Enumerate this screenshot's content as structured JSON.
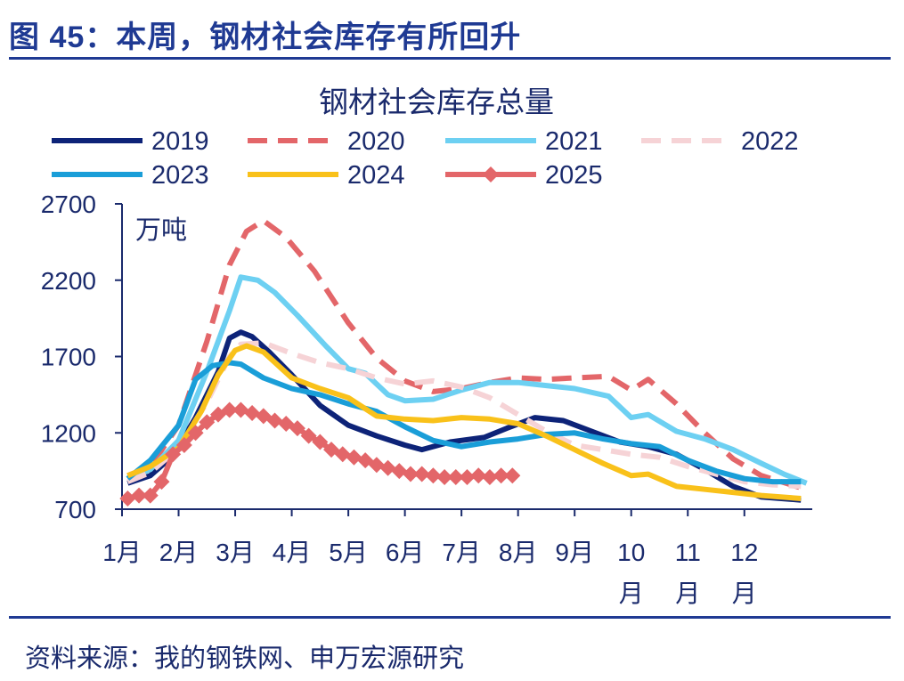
{
  "figure_title": "图 45：本周，钢材社会库存有所回升",
  "source": "资料来源：我的钢铁网、申万宏源研究",
  "chart_data": {
    "type": "line",
    "title": "钢材社会库存总量",
    "unit_label": "万吨",
    "ylim": [
      700,
      2700
    ],
    "yticks": [
      "2700",
      "2200",
      "1700",
      "1200",
      "700"
    ],
    "ytick_values": [
      2700,
      2200,
      1700,
      1200,
      700
    ],
    "xlim": [
      1,
      13.2
    ],
    "xticks": [
      {
        "label": "1月",
        "pos": 1
      },
      {
        "label": "2月",
        "pos": 2
      },
      {
        "label": "3月",
        "pos": 3
      },
      {
        "label": "4月",
        "pos": 4
      },
      {
        "label": "5月",
        "pos": 5
      },
      {
        "label": "6月",
        "pos": 6
      },
      {
        "label": "7月",
        "pos": 7
      },
      {
        "label": "8月",
        "pos": 8
      },
      {
        "label": "9月",
        "pos": 9
      },
      {
        "label": "10\n月",
        "pos": 10
      },
      {
        "label": "11\n月",
        "pos": 11
      },
      {
        "label": "12\n月",
        "pos": 12
      }
    ],
    "legend_position": "top",
    "series": [
      {
        "name": "2019",
        "color": "#0d2378",
        "dash": "solid",
        "marker": "none",
        "x": [
          1.1,
          1.5,
          1.9,
          2.3,
          2.7,
          2.9,
          3.1,
          3.3,
          3.6,
          4.0,
          4.5,
          5.0,
          5.5,
          6.0,
          6.3,
          6.8,
          7.4,
          7.8,
          8.3,
          8.8,
          9.3,
          9.8,
          10.3,
          10.8,
          11.3,
          11.8,
          12.3,
          13.0
        ],
        "y": [
          870,
          920,
          1050,
          1300,
          1600,
          1820,
          1860,
          1830,
          1730,
          1580,
          1380,
          1250,
          1180,
          1120,
          1090,
          1140,
          1170,
          1230,
          1300,
          1280,
          1210,
          1140,
          1110,
          1060,
          960,
          850,
          780,
          760
        ]
      },
      {
        "name": "2020",
        "color": "#e36669",
        "dash": "long",
        "marker": "none",
        "x": [
          1.1,
          1.5,
          2.0,
          2.5,
          2.9,
          3.2,
          3.5,
          3.9,
          4.4,
          5.0,
          5.5,
          6.0,
          6.5,
          7.0,
          7.5,
          8.0,
          8.5,
          9.0,
          9.6,
          10.0,
          10.3,
          10.8,
          11.3,
          11.8,
          12.3,
          13.0
        ],
        "y": [
          920,
          980,
          1250,
          1800,
          2300,
          2520,
          2590,
          2480,
          2260,
          1920,
          1690,
          1540,
          1470,
          1490,
          1530,
          1560,
          1550,
          1560,
          1570,
          1480,
          1550,
          1390,
          1200,
          1030,
          920,
          840
        ]
      },
      {
        "name": "2021",
        "color": "#6dd0f2",
        "dash": "solid",
        "marker": "none",
        "x": [
          1.1,
          1.5,
          2.0,
          2.5,
          2.9,
          3.1,
          3.4,
          3.7,
          4.1,
          4.6,
          5.0,
          5.3,
          5.7,
          6.0,
          6.5,
          7.0,
          7.5,
          8.0,
          8.5,
          9.0,
          9.6,
          10.0,
          10.3,
          10.8,
          11.3,
          11.8,
          12.3,
          12.7,
          13.1
        ],
        "y": [
          900,
          960,
          1150,
          1600,
          2000,
          2220,
          2200,
          2120,
          1970,
          1770,
          1620,
          1590,
          1450,
          1410,
          1420,
          1480,
          1530,
          1530,
          1510,
          1490,
          1440,
          1300,
          1320,
          1210,
          1160,
          1090,
          1000,
          930,
          870
        ]
      },
      {
        "name": "2022",
        "color": "#f6d3d6",
        "dash": "long",
        "marker": "none",
        "x": [
          1.1,
          1.5,
          2.0,
          2.5,
          2.9,
          3.1,
          3.5,
          4.0,
          4.5,
          5.0,
          5.5,
          6.0,
          6.5,
          7.0,
          7.5,
          8.0,
          8.5,
          9.0,
          9.5,
          10.0,
          10.5,
          11.0,
          11.5,
          12.0,
          12.5,
          13.0
        ],
        "y": [
          880,
          940,
          1100,
          1400,
          1700,
          1780,
          1790,
          1720,
          1660,
          1620,
          1560,
          1520,
          1540,
          1500,
          1430,
          1320,
          1210,
          1120,
          1090,
          1060,
          1040,
          980,
          930,
          880,
          860,
          850
        ]
      },
      {
        "name": "2023",
        "color": "#1a9ed8",
        "dash": "solid",
        "marker": "none",
        "x": [
          1.1,
          1.5,
          2.0,
          2.3,
          2.6,
          2.9,
          3.1,
          3.5,
          4.0,
          4.5,
          5.0,
          5.5,
          6.0,
          6.5,
          7.0,
          7.5,
          8.0,
          8.5,
          9.0,
          9.5,
          10.0,
          10.5,
          11.0,
          11.5,
          12.0,
          12.5,
          13.0
        ],
        "y": [
          900,
          1020,
          1250,
          1550,
          1640,
          1660,
          1650,
          1560,
          1490,
          1450,
          1390,
          1340,
          1240,
          1150,
          1110,
          1140,
          1160,
          1190,
          1200,
          1160,
          1130,
          1110,
          1020,
          950,
          900,
          880,
          880
        ]
      },
      {
        "name": "2024",
        "color": "#f9c11a",
        "dash": "solid",
        "marker": "none",
        "x": [
          1.1,
          1.5,
          2.0,
          2.4,
          2.7,
          3.0,
          3.2,
          3.5,
          4.0,
          4.5,
          5.0,
          5.5,
          6.0,
          6.5,
          7.0,
          7.5,
          8.0,
          8.5,
          9.0,
          9.5,
          10.0,
          10.3,
          10.8,
          11.3,
          11.8,
          12.3,
          13.0
        ],
        "y": [
          920,
          980,
          1100,
          1340,
          1580,
          1740,
          1770,
          1730,
          1560,
          1490,
          1430,
          1310,
          1290,
          1280,
          1300,
          1290,
          1260,
          1180,
          1090,
          1000,
          920,
          930,
          850,
          830,
          810,
          790,
          770
        ]
      },
      {
        "name": "2025",
        "color": "#e36669",
        "dash": "solid",
        "marker": "diamond",
        "x": [
          1.1,
          1.3,
          1.5,
          1.7,
          1.9,
          2.1,
          2.3,
          2.5,
          2.7,
          2.9,
          3.1,
          3.3,
          3.5,
          3.7,
          3.9,
          4.1,
          4.3,
          4.5,
          4.7,
          4.9,
          5.1,
          5.3,
          5.5,
          5.7,
          5.9,
          6.1,
          6.3,
          6.5,
          6.7,
          6.9,
          7.1,
          7.3,
          7.5,
          7.7,
          7.9
        ],
        "y": [
          770,
          790,
          790,
          880,
          1060,
          1120,
          1200,
          1270,
          1320,
          1350,
          1350,
          1330,
          1310,
          1280,
          1260,
          1230,
          1180,
          1140,
          1090,
          1060,
          1040,
          1020,
          990,
          970,
          950,
          930,
          930,
          920,
          910,
          910,
          910,
          920,
          910,
          920,
          920
        ]
      }
    ]
  }
}
